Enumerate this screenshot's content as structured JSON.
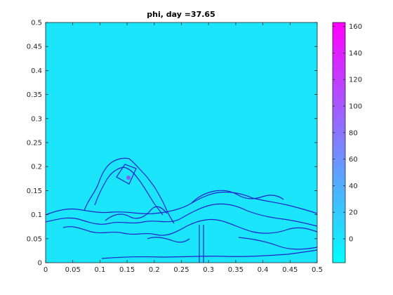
{
  "chart_data": {
    "type": "heatmap",
    "title": "phi, day =37.65",
    "xlabel": "",
    "ylabel": "",
    "xlim": [
      0,
      0.5
    ],
    "ylim": [
      0,
      0.5
    ],
    "x_ticks": [
      "0",
      "0.05",
      "0.1",
      "0.15",
      "0.2",
      "0.25",
      "0.3",
      "0.35",
      "0.4",
      "0.45",
      "0.5"
    ],
    "y_ticks": [
      "0",
      "0.05",
      "0.1",
      "0.15",
      "0.2",
      "0.25",
      "0.3",
      "0.35",
      "0.4",
      "0.45",
      "0.5"
    ],
    "background_value_color": "#1ae5fa",
    "contour_color": "#2222cc",
    "colorbar": {
      "min": -18,
      "max": 163,
      "ticks": [
        "0",
        "20",
        "40",
        "60",
        "80",
        "100",
        "120",
        "140",
        "160"
      ],
      "tick_values": [
        0,
        20,
        40,
        60,
        80,
        100,
        120,
        140,
        160
      ],
      "color_low": "#00ffff",
      "color_high": "#ff00ff"
    },
    "grid": false,
    "box": true
  }
}
